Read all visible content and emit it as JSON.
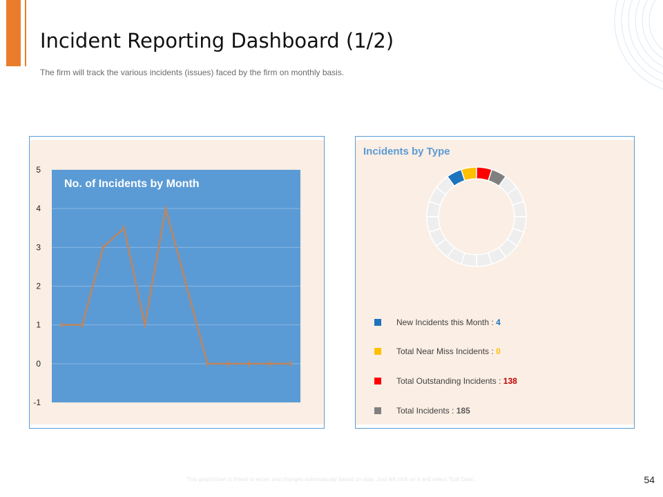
{
  "slide": {
    "title": "Incident Reporting Dashboard (1/2)",
    "subtitle": "The firm will track the various  incidents (issues) faced by the firm on monthly basis.",
    "footnote": "This graph/chart is linked to excel, and changes automatically based on data. Just left click on it and select \"Edit Data\".",
    "page_number": "54"
  },
  "colors": {
    "accent": "#E97D2B",
    "panel_border": "#5b9bd5",
    "panel_bg": "#FBEEE4",
    "plot_bg": "#5B9BD5",
    "line": "#C0855C",
    "ring_empty": "#EEEEEE"
  },
  "chart_data": [
    {
      "type": "line",
      "title": "No. of Incidents  by Month",
      "xlabel": "",
      "ylabel": "",
      "ylim": [
        -1,
        5
      ],
      "yticks": [
        -1,
        0,
        1,
        2,
        3,
        4,
        5
      ],
      "grid": true,
      "legend": "none",
      "x": [
        1,
        2,
        3,
        4,
        5,
        6,
        7,
        8,
        9,
        10,
        11,
        12
      ],
      "series": [
        {
          "values": [
            1,
            1,
            3,
            3.5,
            1,
            4,
            2,
            0,
            0,
            0,
            0,
            0
          ]
        }
      ]
    },
    {
      "type": "pie",
      "title": "Incidents by Type",
      "style": "segmented-donut",
      "segments_total": 20,
      "legend": "bottom",
      "items": [
        {
          "label": "New Incidents this Month : ",
          "value": "4",
          "color": "#1E73BE"
        },
        {
          "label": "Total Near Miss Incidents : ",
          "value": "0",
          "color": "#FFC000"
        },
        {
          "label": "Total Outstanding Incidents : ",
          "value": "138",
          "color": "#FF0000"
        },
        {
          "label": "Total Incidents : ",
          "value": "185",
          "color": "#808080"
        }
      ]
    }
  ]
}
